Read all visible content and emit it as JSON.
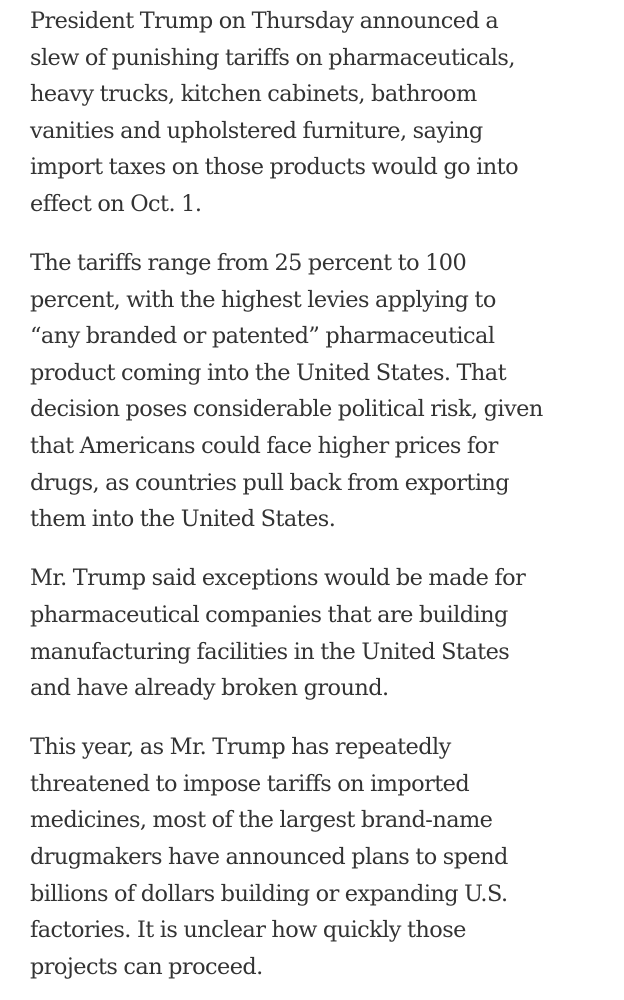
{
  "article": {
    "paragraphs": [
      {
        "lines": [
          "President Trump on Thursday announced a",
          "slew of punishing tariffs on pharmaceuticals,",
          "heavy trucks, kitchen cabinets, bathroom",
          "vanities and upholstered furniture, saying",
          "import taxes on those products would go into",
          "effect on Oct. 1."
        ]
      },
      {
        "lines": [
          "The tariffs range from 25 percent to 100",
          "percent, with the highest levies applying to",
          "“any branded or patented” pharmaceutical",
          "product coming into the United States. That",
          "decision poses considerable political risk, given",
          "that Americans could face higher prices for",
          "drugs, as countries pull back from exporting",
          "them into the United States."
        ]
      },
      {
        "lines": [
          "Mr. Trump said exceptions would be made for",
          "pharmaceutical companies that are building",
          "manufacturing facilities in the United States",
          "and have already broken ground."
        ]
      },
      {
        "lines": [
          "This year, as Mr. Trump has repeatedly",
          "threatened to impose tariffs on imported",
          "medicines, most of the largest brand-name",
          "drugmakers have announced plans to spend",
          "billions of dollars building or expanding U.S.",
          "factories. It is unclear how quickly those",
          "projects can proceed."
        ]
      }
    ]
  },
  "colors": {
    "text": "#333333",
    "background": "#ffffff"
  }
}
